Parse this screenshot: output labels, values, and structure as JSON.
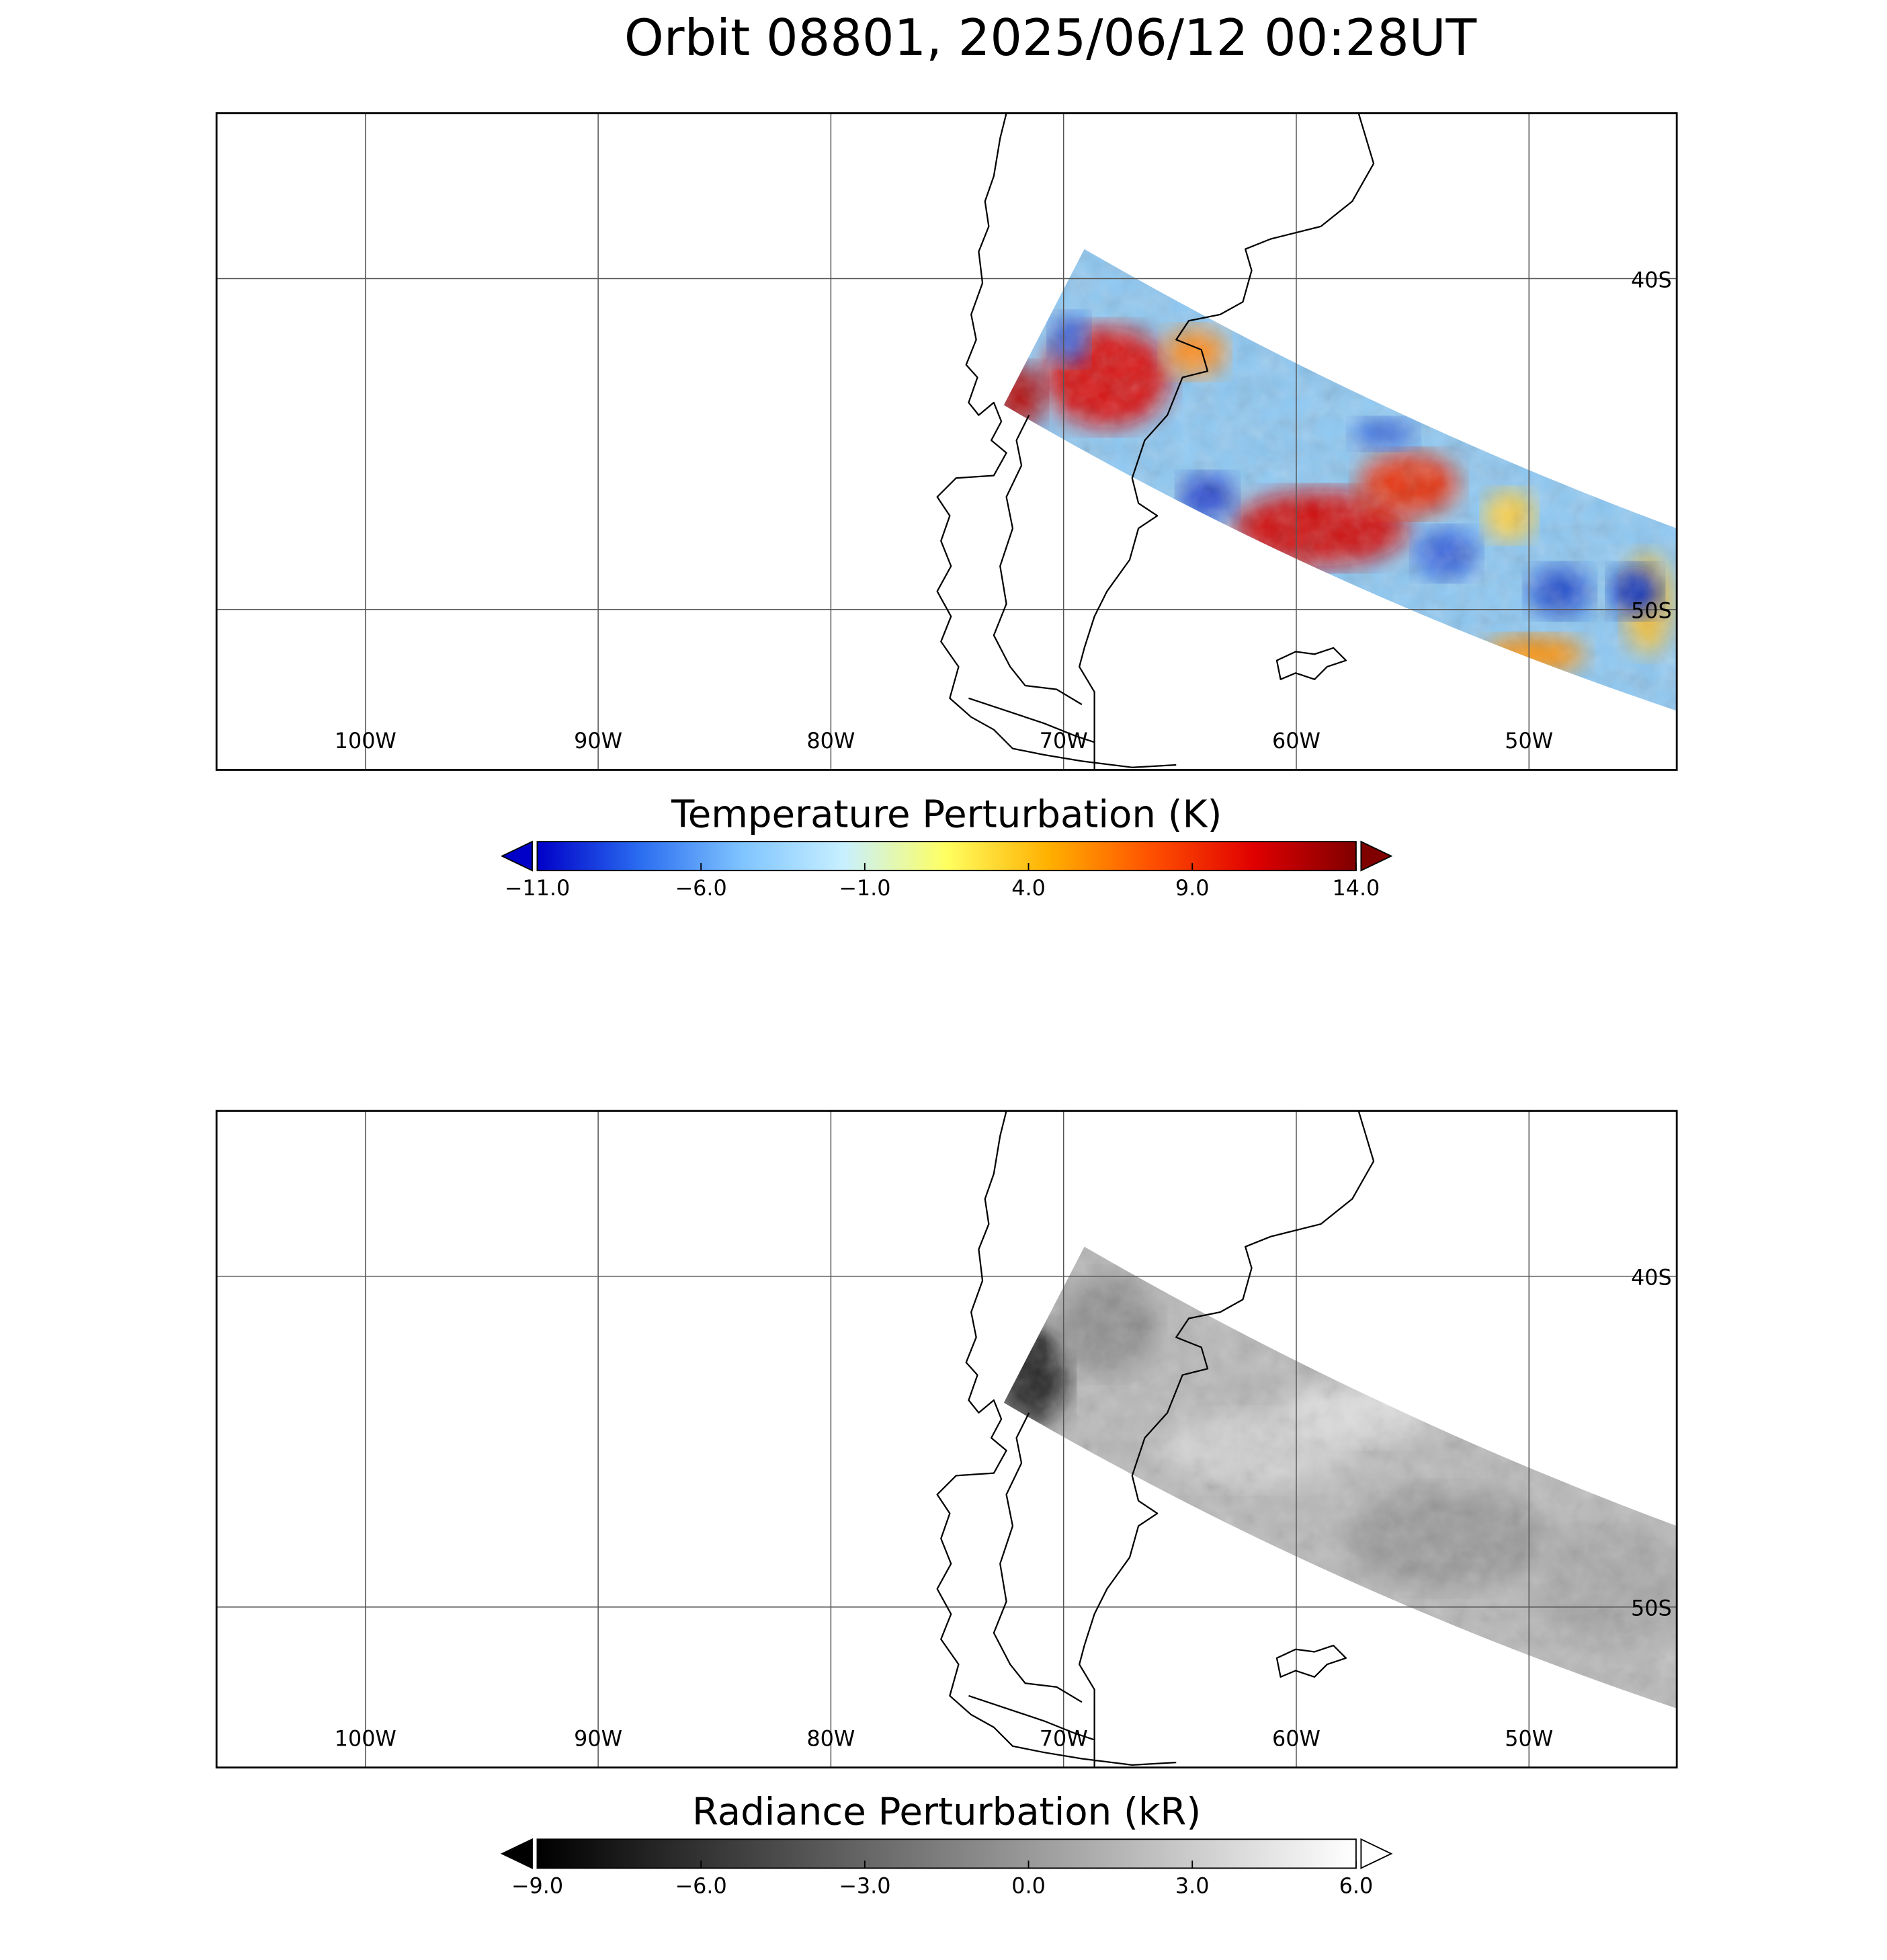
{
  "title": "Orbit 08801, 2025/06/12 00:28UT",
  "panels": [
    {
      "lon_range": [
        -106.4,
        -43.65
      ],
      "lat_range": [
        -35,
        -54.85
      ],
      "lon_ticks": [
        {
          "value": -100,
          "label": "100W"
        },
        {
          "value": -90,
          "label": "90W"
        },
        {
          "value": -80,
          "label": "80W"
        },
        {
          "value": -70,
          "label": "70W"
        },
        {
          "value": -60,
          "label": "60W"
        },
        {
          "value": -50,
          "label": "50W"
        }
      ],
      "lat_ticks": [
        {
          "value": -40,
          "label": "40S"
        },
        {
          "value": -50,
          "label": "50S"
        }
      ],
      "colorbar": {
        "label": "Temperature Perturbation (K)",
        "range": [
          -11,
          14
        ],
        "ticks": [
          {
            "value": -11,
            "label": "−11.0"
          },
          {
            "value": -6,
            "label": "−6.0"
          },
          {
            "value": -1,
            "label": "−1.0"
          },
          {
            "value": 4,
            "label": "4.0"
          },
          {
            "value": 9,
            "label": "9.0"
          },
          {
            "value": 14,
            "label": "14.0"
          }
        ],
        "colors": [
          "#0000c8",
          "#2a6cf0",
          "#7fc4ff",
          "#c8f0ff",
          "#ffff60",
          "#ffb000",
          "#ff5000",
          "#e00000",
          "#800000"
        ]
      }
    },
    {
      "lon_range": [
        -106.4,
        -43.65
      ],
      "lat_range": [
        -35,
        -54.85
      ],
      "lon_ticks": [
        {
          "value": -100,
          "label": "100W"
        },
        {
          "value": -90,
          "label": "90W"
        },
        {
          "value": -80,
          "label": "80W"
        },
        {
          "value": -70,
          "label": "70W"
        },
        {
          "value": -60,
          "label": "60W"
        },
        {
          "value": -50,
          "label": "50W"
        }
      ],
      "lat_ticks": [
        {
          "value": -40,
          "label": "40S"
        },
        {
          "value": -50,
          "label": "50S"
        }
      ],
      "colorbar": {
        "label": "Radiance Perturbation (kR)",
        "range": [
          -9,
          6
        ],
        "ticks": [
          {
            "value": -9,
            "label": "−9.0"
          },
          {
            "value": -6,
            "label": "−6.0"
          },
          {
            "value": -3,
            "label": "−3.0"
          },
          {
            "value": 0,
            "label": "0.0"
          },
          {
            "value": 3,
            "label": "3.0"
          },
          {
            "value": 6,
            "label": "6.0"
          }
        ],
        "colors": [
          "#000000",
          "#ffffff"
        ]
      }
    }
  ]
}
